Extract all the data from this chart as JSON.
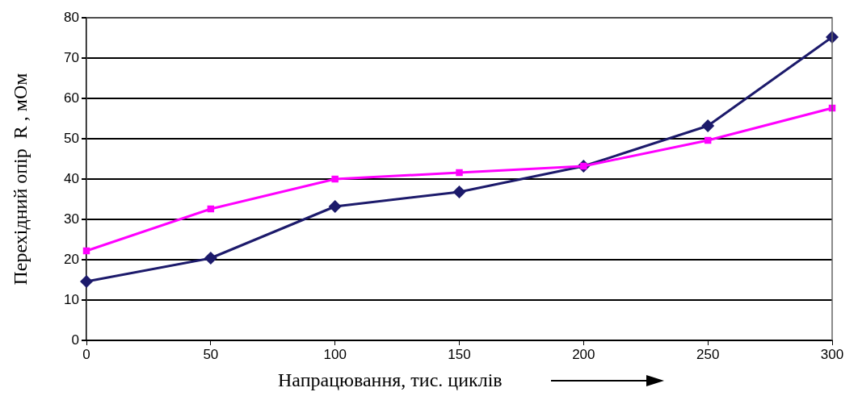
{
  "chart_data": {
    "type": "line",
    "xlabel": "Напрацювання, тис. циклів",
    "ylabel": "Перехідний опір  R , мОм",
    "x": [
      0,
      50,
      100,
      150,
      200,
      250,
      300
    ],
    "series": [
      {
        "color": "#1c1a6b",
        "values": [
          14.6,
          20.4,
          33.2,
          36.8,
          43.2,
          53.2,
          75.2
        ],
        "marker": "diamond"
      },
      {
        "color": "#ff00ff",
        "values": [
          22.2,
          32.6,
          40,
          41.6,
          43.2,
          49.6,
          57.6
        ],
        "marker": "square"
      }
    ],
    "xlim": [
      0,
      300
    ],
    "xticks": [
      0,
      50,
      100,
      150,
      200,
      250,
      300
    ],
    "ylim": [
      0,
      80
    ],
    "yticks": [
      0,
      10,
      20,
      30,
      40,
      50,
      60,
      70,
      80
    ],
    "grid": "y",
    "legend": false,
    "line_style": "solid"
  }
}
